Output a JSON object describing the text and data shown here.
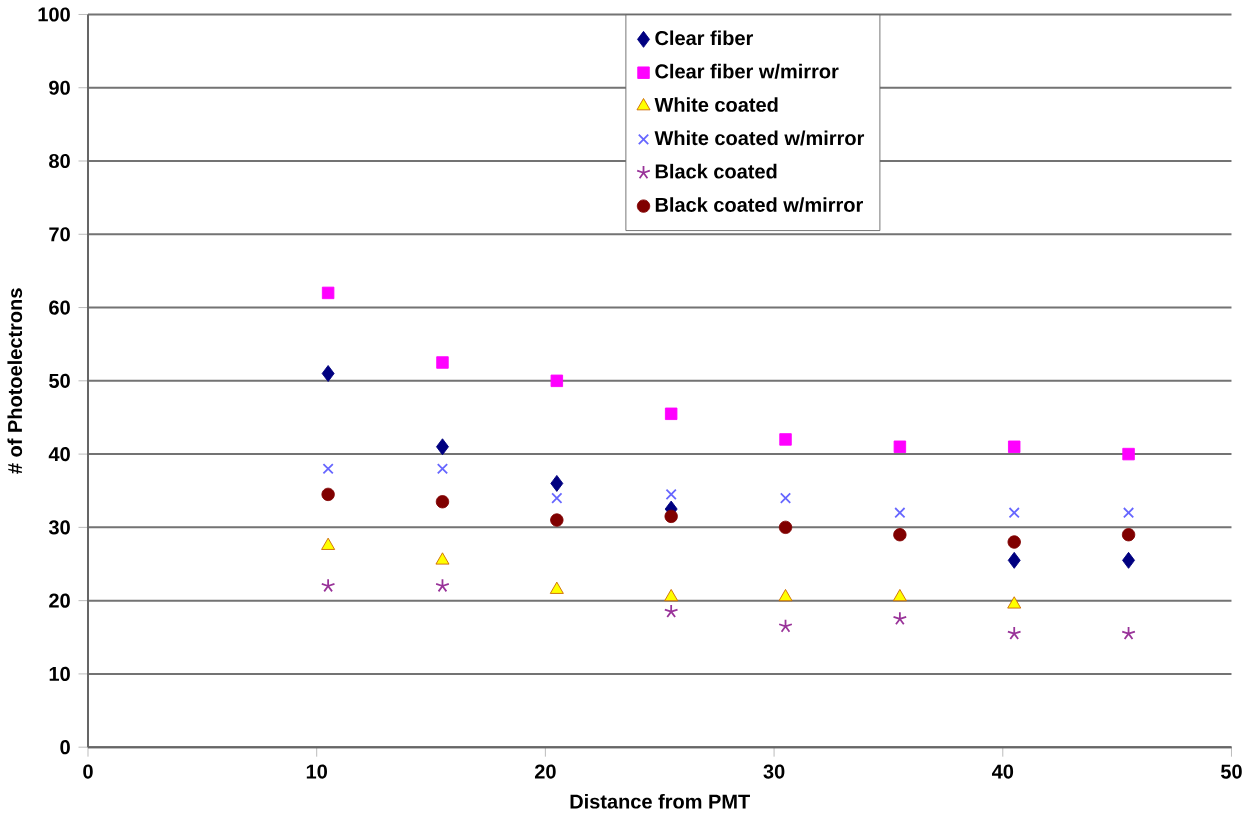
{
  "chart_data": {
    "type": "scatter",
    "xlabel": "Distance from PMT",
    "ylabel": "# of Photoelectrons",
    "x": [
      10.5,
      15.5,
      20.5,
      25.5,
      30.5,
      35.5,
      40.5,
      45.5
    ],
    "series": [
      {
        "name": "Clear fiber",
        "color": "#000080",
        "marker": "diamond",
        "values": [
          51,
          41,
          36,
          32.5,
          null,
          null,
          25.5,
          25.5
        ]
      },
      {
        "name": "Clear fiber w/mirror",
        "color": "#ff00ff",
        "marker": "square",
        "values": [
          62,
          52.5,
          50,
          45.5,
          42,
          41,
          41,
          40
        ]
      },
      {
        "name": "White coated",
        "color": "#ffff00",
        "marker": "triangle",
        "values": [
          27.5,
          25.5,
          21.5,
          20.5,
          20.5,
          20.5,
          19.5,
          null
        ]
      },
      {
        "name": "White coated w/mirror",
        "color": "#6666ff",
        "marker": "cross",
        "values": [
          38,
          38,
          34,
          34.5,
          34,
          32,
          32,
          32
        ]
      },
      {
        "name": "Black coated",
        "color": "#993399",
        "marker": "cross",
        "values": [
          22,
          22,
          null,
          18.5,
          16.5,
          17.5,
          15.5,
          15.5
        ]
      },
      {
        "name": "Black coated w/mirror",
        "color": "#800000",
        "marker": "circle",
        "values": [
          34.5,
          33.5,
          31,
          31.5,
          30,
          29,
          28,
          29
        ]
      }
    ],
    "xlim": [
      0,
      50
    ],
    "xticks": [
      0,
      10,
      20,
      30,
      40,
      50
    ],
    "ylim": [
      0,
      100
    ],
    "yticks": [
      0,
      10,
      20,
      30,
      40,
      50,
      60,
      70,
      80,
      90,
      100
    ],
    "grid": "y",
    "legend": "top right"
  }
}
